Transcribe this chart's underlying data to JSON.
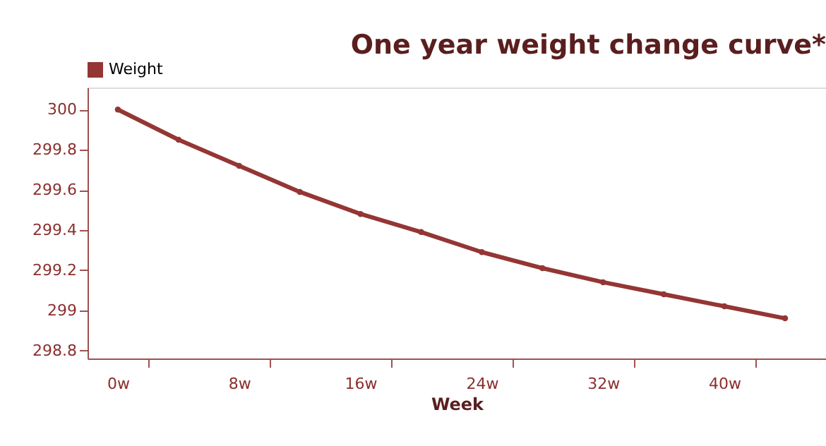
{
  "chart_data": {
    "type": "line",
    "title": "One year weight change curve*",
    "xlabel": "Week",
    "x": [
      0,
      4,
      8,
      12,
      16,
      20,
      24,
      28,
      32,
      36,
      40,
      44
    ],
    "series": [
      {
        "name": "Weight",
        "color": "#943634",
        "values": [
          300.0,
          299.85,
          299.72,
          299.59,
          299.48,
          299.39,
          299.29,
          299.21,
          299.14,
          299.08,
          299.02,
          298.96
        ]
      }
    ],
    "xlim": [
      -2,
      46.7
    ],
    "xticks": [
      {
        "value": 0,
        "label": "0w"
      },
      {
        "value": 8,
        "label": "8w"
      },
      {
        "value": 16,
        "label": "16w"
      },
      {
        "value": 24,
        "label": "24w"
      },
      {
        "value": 32,
        "label": "32w"
      },
      {
        "value": 40,
        "label": "40w"
      },
      {
        "value": 2,
        "label": null
      },
      {
        "value": 10,
        "label": null
      },
      {
        "value": 18,
        "label": null
      },
      {
        "value": 26,
        "label": null
      },
      {
        "value": 34,
        "label": null
      },
      {
        "value": 42,
        "label": null
      }
    ],
    "ylim": [
      298.76,
      300.11
    ],
    "yticks": [
      298.8,
      299,
      299.2,
      299.4,
      299.6,
      299.8,
      300
    ],
    "grid": false,
    "legend": "top",
    "marker": "circle",
    "line_style": "solid"
  }
}
